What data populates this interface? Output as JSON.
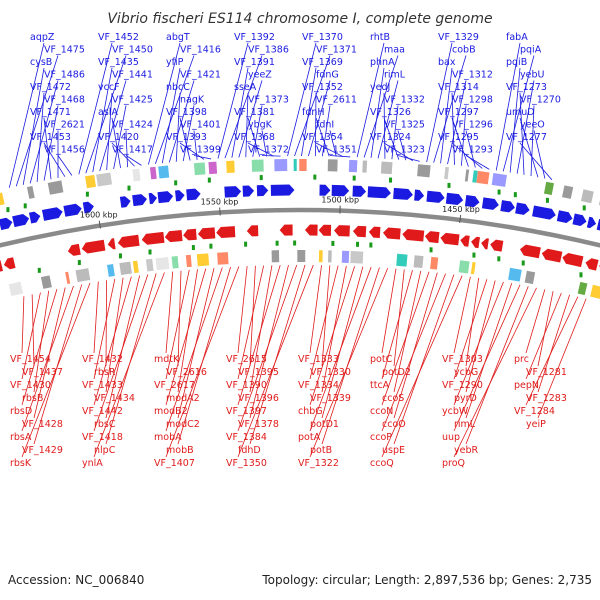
{
  "title": "Vibrio fischeri ES114 chromosome I, complete genome",
  "footer": {
    "accession": "Accession: NC_006840",
    "summary": "Topology: circular; Length: 2,897,536 bp; Genes: 2,735"
  },
  "colors": {
    "forward_strand": "#1a1ae0",
    "reverse_strand": "#e01a1a",
    "backbone": "#8a8a8a",
    "rna_marker": "#1a9a1a"
  },
  "scale_labels": [
    "1600 kbp",
    "1550 kbp",
    "1500 kbp",
    "1450 kbp"
  ],
  "top_genes": [
    "aqpZ",
    "VF_1475",
    "cysB",
    "VF_1486",
    "VF_1472",
    "VF_1468",
    "VF_1471",
    "VF_2621",
    "VF_1453",
    "VF_1456",
    "VF_1452",
    "VF_1450",
    "VF_1435",
    "VF_1441",
    "vccF",
    "VF_1425",
    "aslA",
    "VF_1424",
    "VF_1420",
    "VF_1417",
    "abgT",
    "VF_1416",
    "yfiP",
    "VF_1421",
    "nbcC",
    "nagK",
    "VF_1398",
    "VF_1401",
    "VF_1393",
    "VF_1399",
    "VF_1392",
    "VF_1386",
    "VF_1391",
    "yeeZ",
    "sseA",
    "VF_1373",
    "VF_1381",
    "ybgK",
    "VF_1368",
    "VF_1372",
    "VF_1370",
    "VF_1371",
    "VF_1369",
    "fdnG",
    "VF_1352",
    "VF_2611",
    "fdnH",
    "fdnI",
    "VF_1354",
    "VF_1351",
    "rhtB",
    "maa",
    "phnA",
    "rimL",
    "yedJ",
    "VF_1332",
    "VF_1326",
    "VF_1325",
    "VF_1324",
    "VF_1323",
    "VF_1329",
    "cobB",
    "bax",
    "VF_1312",
    "VF_1314",
    "VF_1298",
    "VF_1297",
    "VF_1296",
    "VF_1295",
    "VF_1293",
    "fabA",
    "pqiA",
    "pqiB",
    "yebU",
    "VF_1273",
    "VF_1270",
    "umuD",
    "yeeO",
    "VF_1277"
  ],
  "bottom_genes": [
    "VF_1454",
    "VF_1437",
    "VF_1430",
    "rbsB",
    "rbsD",
    "VF_1428",
    "rbsA",
    "VF_1429",
    "rbsK",
    "VF_1432",
    "rbsR",
    "VF_1433",
    "VF_1434",
    "VF_1442",
    "rbsC",
    "VF_1418",
    "nlpC",
    "ynlA",
    "mdtK",
    "VF_2616",
    "VF_2617",
    "modA2",
    "modB2",
    "modC2",
    "mobA",
    "mobB",
    "VF_1407",
    "VF_2615",
    "VF_1395",
    "VF_1390",
    "VF_1396",
    "VF_1397",
    "VF_1378",
    "VF_1384",
    "fdhD",
    "VF_1350",
    "VF_1333",
    "VF_1330",
    "VF_1334",
    "VF_1339",
    "chbG",
    "potD1",
    "potA",
    "potB",
    "VF_1322",
    "potC",
    "potD2",
    "ttcA",
    "ccoS",
    "ccoN",
    "ccoO",
    "ccoP",
    "uspE",
    "ccoQ",
    "VF_1303",
    "ycbG",
    "VF_1290",
    "pyrD",
    "ycbW",
    "rimL",
    "uup",
    "yebR",
    "proQ",
    "prc",
    "VF_1281",
    "pepN",
    "VF_1283",
    "VF_1284",
    "yeiP"
  ]
}
